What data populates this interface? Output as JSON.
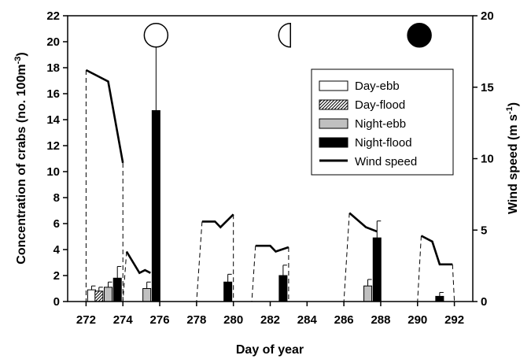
{
  "chart_data": {
    "type": "bar",
    "xlabel": "Day of year",
    "ylabel": "Concentration of crabs (no. 100m",
    "ylabel_sup": "-3",
    "ylabel_close": ")",
    "y2label": "Wind speed (m s",
    "y2label_sup": "-1",
    "y2label_close": ")",
    "xlim": [
      271,
      293
    ],
    "ylim": [
      0,
      22
    ],
    "y2lim": [
      0,
      20
    ],
    "x_ticks": [
      272,
      274,
      276,
      278,
      280,
      282,
      284,
      286,
      288,
      290,
      292
    ],
    "y_ticks": [
      0,
      2,
      4,
      6,
      8,
      10,
      12,
      14,
      16,
      18,
      20,
      22
    ],
    "y2_ticks": [
      0,
      5,
      10,
      15,
      20
    ],
    "legend_position": "top-right",
    "series": [
      {
        "name": "Day-ebb",
        "fill": "#ffffff",
        "pattern": "none",
        "points": [
          {
            "x": 272.3,
            "y": 0.9,
            "err": 0.3
          }
        ]
      },
      {
        "name": "Day-flood",
        "fill": "#ffffff",
        "pattern": "hatch",
        "points": [
          {
            "x": 272.7,
            "y": 0.8,
            "err": 0.3
          }
        ]
      },
      {
        "name": "Night-ebb",
        "fill": "#c0c0c0",
        "pattern": "none",
        "points": [
          {
            "x": 273.2,
            "y": 1.1,
            "err": 0.4
          },
          {
            "x": 275.3,
            "y": 1.0,
            "err": 0.5
          },
          {
            "x": 287.3,
            "y": 1.2,
            "err": 0.5
          }
        ]
      },
      {
        "name": "Night-flood",
        "fill": "#000000",
        "pattern": "none",
        "points": [
          {
            "x": 273.7,
            "y": 1.8,
            "err": 0.9
          },
          {
            "x": 275.8,
            "y": 14.7,
            "err": 5.7
          },
          {
            "x": 279.7,
            "y": 1.5,
            "err": 0.6
          },
          {
            "x": 282.7,
            "y": 2.0,
            "err": 0.8
          },
          {
            "x": 287.8,
            "y": 4.9,
            "err": 1.3
          },
          {
            "x": 291.2,
            "y": 0.4,
            "err": 0.3
          }
        ]
      },
      {
        "name": "Wind speed",
        "type": "line",
        "axis": "right",
        "segments": [
          [
            [
              272.0,
              16.2
            ],
            [
              273.2,
              15.4
            ],
            [
              274.0,
              9.7
            ]
          ],
          [
            [
              274.2,
              3.5
            ],
            [
              274.9,
              2.0
            ],
            [
              275.2,
              2.2
            ],
            [
              275.5,
              2.0
            ]
          ],
          [
            [
              278.3,
              5.6
            ],
            [
              279.0,
              5.6
            ],
            [
              279.3,
              5.2
            ],
            [
              280.0,
              6.1
            ]
          ],
          [
            [
              281.2,
              3.9
            ],
            [
              282.0,
              3.9
            ],
            [
              282.3,
              3.5
            ],
            [
              283.0,
              3.8
            ]
          ],
          [
            [
              286.3,
              6.2
            ],
            [
              287.2,
              5.2
            ],
            [
              287.8,
              4.9
            ]
          ],
          [
            [
              290.2,
              4.6
            ],
            [
              290.8,
              4.2
            ],
            [
              291.2,
              2.6
            ],
            [
              291.9,
              2.6
            ]
          ]
        ],
        "gap_connectors": [
          [
            [
              272.0,
              16.2
            ],
            [
              272.0,
              0
            ]
          ],
          [
            [
              274.0,
              9.7
            ],
            [
              274.0,
              0
            ]
          ],
          [
            [
              274.2,
              3.5
            ],
            [
              274.0,
              0
            ]
          ],
          [
            [
              278.3,
              5.6
            ],
            [
              278.0,
              0
            ]
          ],
          [
            [
              280.0,
              6.1
            ],
            [
              280.0,
              0
            ]
          ],
          [
            [
              281.2,
              3.9
            ],
            [
              281.0,
              0
            ]
          ],
          [
            [
              283.0,
              3.8
            ],
            [
              283.0,
              0
            ]
          ],
          [
            [
              286.3,
              6.2
            ],
            [
              286.0,
              0
            ]
          ],
          [
            [
              290.2,
              4.6
            ],
            [
              290.0,
              0
            ]
          ],
          [
            [
              291.9,
              2.6
            ],
            [
              292.0,
              0
            ]
          ]
        ]
      }
    ],
    "moon_phases": [
      {
        "x": 275.8,
        "y": 20.5,
        "phase": "full"
      },
      {
        "x": 283.1,
        "y": 20.5,
        "phase": "half"
      },
      {
        "x": 290.1,
        "y": 20.5,
        "phase": "new"
      }
    ]
  }
}
